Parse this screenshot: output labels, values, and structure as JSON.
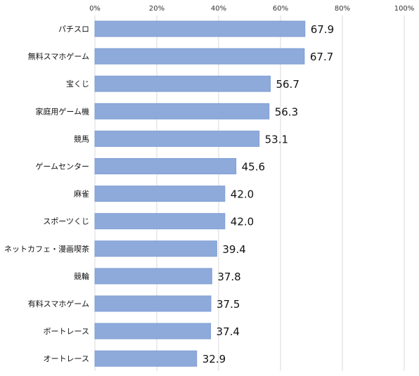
{
  "chart_data": {
    "type": "bar",
    "orientation": "horizontal",
    "categories": [
      "パチスロ",
      "無料スマホゲーム",
      "宝くじ",
      "家庭用ゲーム機",
      "競馬",
      "ゲームセンター",
      "麻雀",
      "スポーツくじ",
      "ネットカフェ・漫画喫茶",
      "競輪",
      "有料スマホゲーム",
      "ボートレース",
      "オートレース"
    ],
    "values": [
      67.9,
      67.7,
      56.7,
      56.3,
      53.1,
      45.6,
      42.0,
      42.0,
      39.4,
      37.8,
      37.5,
      37.4,
      32.9
    ],
    "value_labels": [
      "67.9",
      "67.7",
      "56.7",
      "56.3",
      "53.1",
      "45.6",
      "42.0",
      "42.0",
      "39.4",
      "37.8",
      "37.5",
      "37.4",
      "32.9"
    ],
    "xlim": [
      0,
      100
    ],
    "x_ticks": [
      0,
      20,
      40,
      60,
      80,
      100
    ],
    "x_tick_labels": [
      "0%",
      "20%",
      "40%",
      "60%",
      "80%",
      "100%"
    ],
    "x_axis_position": "top",
    "grid": true,
    "colors": {
      "bar": "#8eaadb",
      "bar_border": "#7f9fd4",
      "grid": "#d9d9d9"
    }
  }
}
